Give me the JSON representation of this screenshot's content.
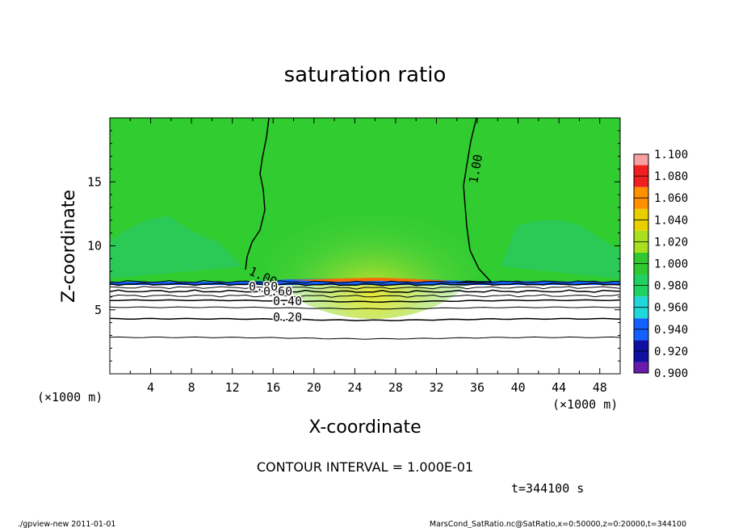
{
  "chart_data": {
    "type": "contour",
    "title": "saturation ratio",
    "xlabel": "X-coordinate",
    "ylabel": "Z-coordinate",
    "x_unit": "(×1000 m)",
    "z_unit": "(×1000 m)",
    "xlim": [
      0,
      50
    ],
    "ylim": [
      0,
      20
    ],
    "x_ticks": [
      4,
      8,
      12,
      16,
      20,
      24,
      28,
      32,
      36,
      40,
      44,
      48
    ],
    "y_ticks": [
      5,
      10,
      15
    ],
    "colorbar": {
      "levels": [
        0.9,
        0.92,
        0.94,
        0.96,
        0.98,
        1.0,
        1.02,
        1.04,
        1.06,
        1.08,
        1.1
      ],
      "labels": [
        "0.900",
        "0.920",
        "0.940",
        "0.960",
        "0.980",
        "1.000",
        "1.020",
        "1.040",
        "1.060",
        "1.080",
        "1.100"
      ],
      "colors": [
        "#6a1aa8",
        "#1010a0",
        "#1460ff",
        "#20d8d8",
        "#20d060",
        "#30c830",
        "#a8e020",
        "#e8d000",
        "#ff9000",
        "#f02020",
        "#f8a0a0"
      ]
    },
    "contour_labels": [
      "1.00",
      "1.00",
      "0.80",
      "0.60",
      "0.40",
      "0.20"
    ],
    "contour_interval": "CONTOUR INTERVAL = 1.000E-01",
    "time_label": "t=344100 s"
  },
  "footer": {
    "left": "./gpview-new  2011-01-01",
    "right": "MarsCond_SatRatio.nc@SatRatio,x=0:50000,z=0:20000,t=344100"
  }
}
